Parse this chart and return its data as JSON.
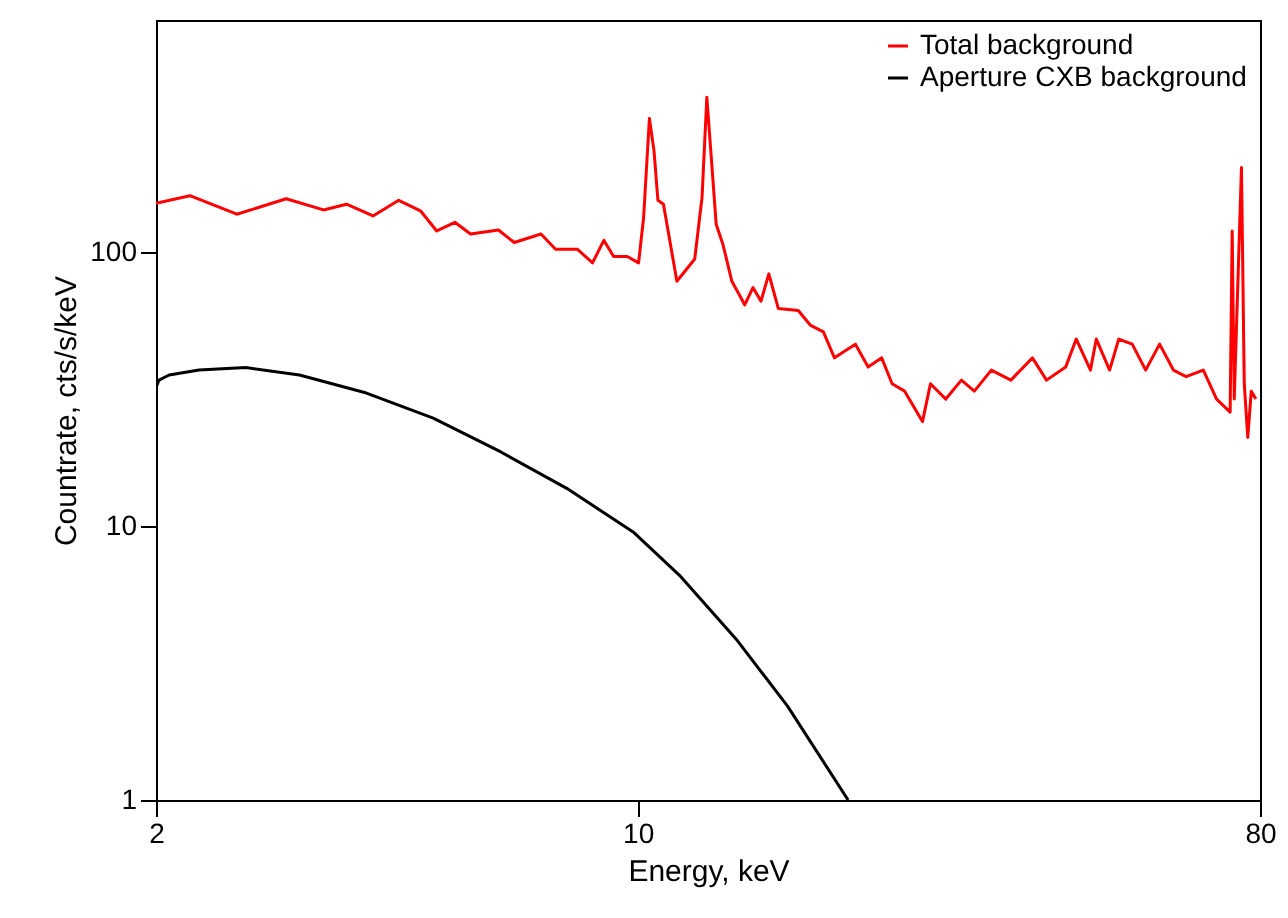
{
  "chart_data": {
    "type": "line",
    "xlabel": "Energy, keV",
    "ylabel": "Countrate, cts/s/keV",
    "log": "xy",
    "xlim": [
      2,
      80
    ],
    "ylim": [
      1,
      700
    ],
    "xticks": [
      2,
      10,
      80
    ],
    "yticks": [
      1,
      10,
      100
    ],
    "grid": false,
    "legend": "top right",
    "series": [
      {
        "name": "Total background",
        "color": "#ff0000",
        "x": [
          2,
          2.24,
          2.62,
          3.09,
          3.5,
          3.78,
          4.13,
          4.5,
          4.84,
          5.11,
          5.43,
          5.72,
          6.28,
          6.62,
          7.24,
          7.6,
          8.18,
          8.6,
          8.93,
          9.23,
          9.66,
          10.03,
          10.2,
          10.4,
          10.56,
          10.7,
          10.9,
          11.4,
          12.1,
          12.4,
          12.6,
          13.0,
          13.3,
          13.7,
          14.3,
          14.7,
          15.1,
          15.5,
          16.0,
          17.1,
          17.8,
          18.6,
          19.3,
          20.7,
          21.6,
          22.6,
          23.4,
          24.4,
          25.9,
          26.6,
          28.0,
          29.5,
          30.8,
          32.6,
          34.8,
          37.4,
          39.2,
          41.8,
          43.3,
          45.4,
          46.3,
          48.4,
          49.9,
          52.2,
          54.6,
          57.2,
          59.9,
          62.5,
          66.2,
          69.2,
          72.4,
          72.9,
          73.4,
          75.2,
          75.9,
          76.8,
          77.7,
          78.9
        ],
        "values": [
          150,
          160,
          137,
          156,
          142,
          149,
          135,
          154,
          141,
          119,
          128,
          116,
          120,
          108,
          116,
          102,
          102,
          91,
          110,
          96,
          96,
          91,
          133,
          306,
          234,
          154,
          149,
          78,
          94,
          158,
          366,
          126,
          106,
          78,
          64,
          74,
          66,
          83,
          62,
          61,
          54,
          51,
          41,
          46,
          38,
          41,
          33,
          31,
          24,
          33,
          29,
          34,
          31,
          37,
          34,
          41,
          34,
          38,
          48,
          37,
          48,
          37,
          48,
          46,
          37,
          46,
          37,
          35,
          37,
          29,
          26,
          119,
          29,
          203,
          33,
          21,
          31,
          29
        ]
      },
      {
        "name": "Aperture CXB background",
        "color": "#000000",
        "x": [
          2,
          2.02,
          2.09,
          2.31,
          2.7,
          3.23,
          4.04,
          5.05,
          6.33,
          7.89,
          9.85,
          11.5,
          13.9,
          16.5,
          20.2
        ],
        "values": [
          32,
          34,
          35.5,
          37,
          37.8,
          35.5,
          30.5,
          24.7,
          18.6,
          13.7,
          9.5,
          6.6,
          3.86,
          2.2,
          1.0
        ]
      }
    ]
  }
}
